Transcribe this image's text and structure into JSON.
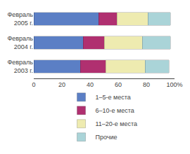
{
  "chart_data": {
    "type": "bar",
    "orientation": "horizontal",
    "stacked": true,
    "categories": [
      "Февраль\n2005 г.",
      "Февраль\n2004 г.",
      "Февраль\n2003 г."
    ],
    "series": [
      {
        "name": "1–5-е места",
        "values": [
          46,
          35,
          33
        ],
        "color": "#5b7fc5"
      },
      {
        "name": "6–10-е места",
        "values": [
          13,
          15,
          18
        ],
        "color": "#b03070"
      },
      {
        "name": "11–20-е места",
        "values": [
          22,
          27,
          28
        ],
        "color": "#eeebb0"
      },
      {
        "name": "Прочие",
        "values": [
          16,
          20,
          17
        ],
        "color": "#aad4d8"
      }
    ],
    "xlim": [
      0,
      100
    ],
    "xticks": [
      0,
      20,
      40,
      60,
      80,
      {
        "value": 100,
        "label": "100%"
      }
    ],
    "grid": false,
    "legend": "bottom"
  }
}
